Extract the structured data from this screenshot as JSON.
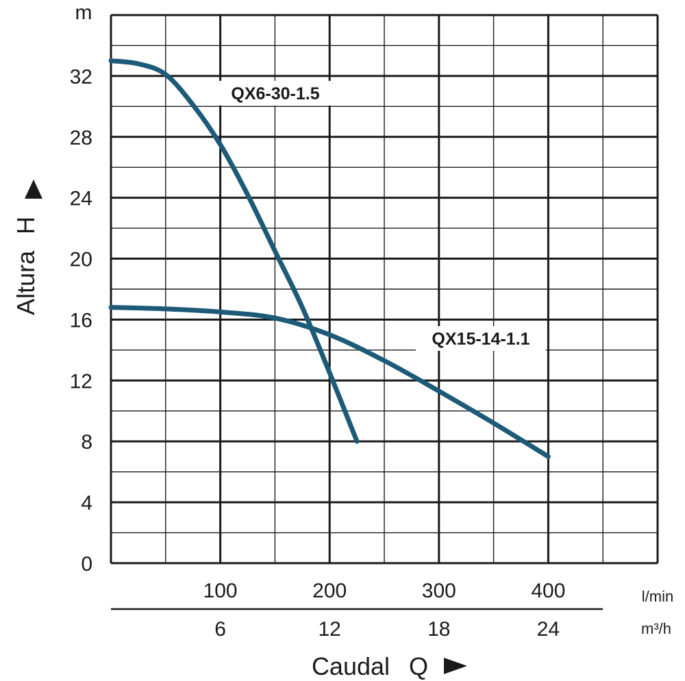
{
  "chart_data": {
    "type": "line",
    "xlabel": "Caudal",
    "xsymbol": "Q",
    "ylabel": "Altura",
    "ysymbol": "H",
    "yunit": "m",
    "x_unit_primary": "l/min",
    "x_unit_secondary": "m³/h",
    "xlim": [
      0,
      500
    ],
    "ylim": [
      0,
      36
    ],
    "y_ticks": [
      0,
      4,
      8,
      12,
      16,
      20,
      24,
      28,
      32
    ],
    "y_tick_labels": [
      "0",
      "4",
      "8",
      "12",
      "16",
      "20",
      "24",
      "28",
      "32"
    ],
    "x_ticks_primary": [
      100,
      200,
      300,
      400
    ],
    "x_tick_labels_primary": [
      "100",
      "200",
      "300",
      "400"
    ],
    "x_ticks_secondary": [
      6,
      12,
      18,
      24
    ],
    "x_tick_labels_secondary": [
      "6",
      "12",
      "18",
      "24"
    ],
    "grid": true,
    "series": [
      {
        "name": "QX6-30-1.5",
        "color": "#1d5a78",
        "x": [
          0,
          25,
          50,
          75,
          100,
          125,
          150,
          175,
          200,
          225
        ],
        "y": [
          33,
          32.8,
          32.1,
          30.1,
          27.5,
          24.2,
          20.5,
          16.8,
          12.5,
          8
        ]
      },
      {
        "name": "QX15-14-1.1",
        "color": "#1d5a78",
        "x": [
          0,
          50,
          100,
          150,
          200,
          250,
          300,
          350,
          400
        ],
        "y": [
          16.8,
          16.7,
          16.5,
          16.1,
          15.0,
          13.3,
          11.3,
          9.2,
          7
        ]
      }
    ]
  }
}
